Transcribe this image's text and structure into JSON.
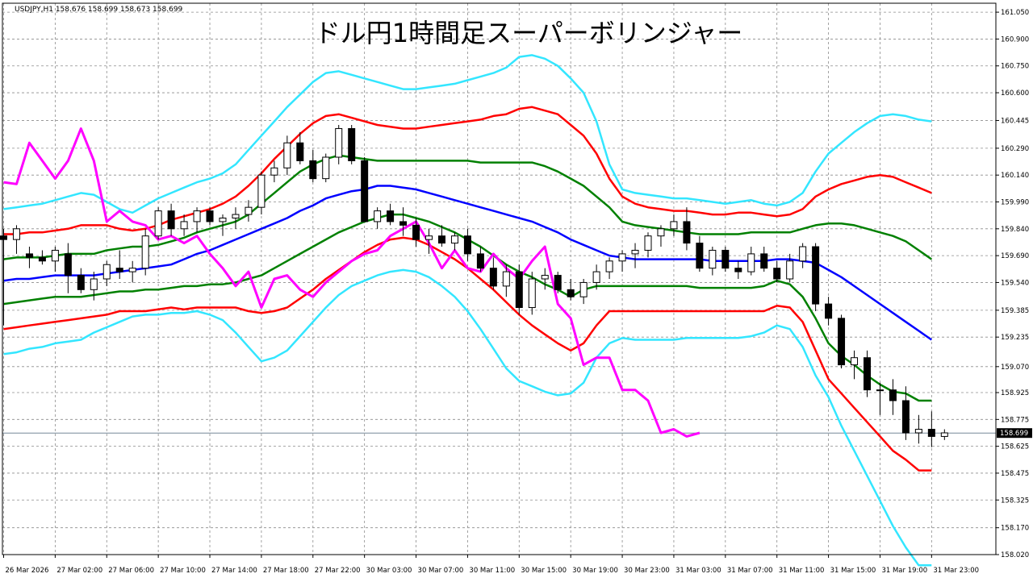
{
  "header": {
    "symbol_info": "USDJPY,H1  158.676 158.699 158.673 158.699",
    "title": "ドル円1時間足スーパーボリンジャー"
  },
  "colors": {
    "background": "#ffffff",
    "grid": "#8c8c8c",
    "bull_candle": "#ffffff",
    "bear_candle": "#000000",
    "sma": "#0000ff",
    "band_1sigma": "#008000",
    "band_2sigma": "#ff0000",
    "band_3sigma": "#33e6ff",
    "lagging_span": "#ff00ff",
    "price_line": "#778899"
  },
  "chart_data": {
    "type": "line",
    "title": "ドル円1時間足スーパーボリンジャー",
    "symbol": "USDJPY",
    "timeframe": "H1",
    "current_price": "158.699",
    "ylim": [
      158.02,
      161.1
    ],
    "y_ticks": [
      "161.050",
      "160.900",
      "160.750",
      "160.600",
      "160.445",
      "160.290",
      "160.140",
      "159.990",
      "159.840",
      "159.690",
      "159.540",
      "159.385",
      "159.235",
      "159.070",
      "158.925",
      "158.775",
      "158.625",
      "158.475",
      "158.325",
      "158.170",
      "158.020"
    ],
    "x_ticks": [
      {
        "index": 0,
        "label": "26 Mar 2026"
      },
      {
        "index": 4,
        "label": "27 Mar 02:00"
      },
      {
        "index": 8,
        "label": "27 Mar 06:00"
      },
      {
        "index": 12,
        "label": "27 Mar 10:00"
      },
      {
        "index": 16,
        "label": "27 Mar 14:00"
      },
      {
        "index": 20,
        "label": "27 Mar 18:00"
      },
      {
        "index": 24,
        "label": "27 Mar 22:00"
      },
      {
        "index": 28,
        "label": "30 Mar 03:00"
      },
      {
        "index": 32,
        "label": "30 Mar 07:00"
      },
      {
        "index": 36,
        "label": "30 Mar 11:00"
      },
      {
        "index": 40,
        "label": "30 Mar 15:00"
      },
      {
        "index": 44,
        "label": "30 Mar 19:00"
      },
      {
        "index": 48,
        "label": "30 Mar 23:00"
      },
      {
        "index": 52,
        "label": "31 Mar 03:00"
      },
      {
        "index": 56,
        "label": "31 Mar 07:00"
      },
      {
        "index": 60,
        "label": "31 Mar 11:00"
      },
      {
        "index": 64,
        "label": "31 Mar 15:00"
      },
      {
        "index": 68,
        "label": "31 Mar 19:00"
      },
      {
        "index": 72,
        "label": "31 Mar 23:00"
      }
    ],
    "candles": [
      [
        159.8,
        159.84,
        159.3,
        159.78
      ],
      [
        159.78,
        159.86,
        159.7,
        159.84
      ],
      [
        159.7,
        159.74,
        159.62,
        159.68
      ],
      [
        159.68,
        159.72,
        159.64,
        159.66
      ],
      [
        159.66,
        159.74,
        159.6,
        159.72
      ],
      [
        159.7,
        159.76,
        159.48,
        159.58
      ],
      [
        159.58,
        159.62,
        159.48,
        159.5
      ],
      [
        159.5,
        159.6,
        159.44,
        159.56
      ],
      [
        159.56,
        159.66,
        159.52,
        159.64
      ],
      [
        159.62,
        159.72,
        159.56,
        159.6
      ],
      [
        159.6,
        159.66,
        159.54,
        159.62
      ],
      [
        159.62,
        159.84,
        159.58,
        159.8
      ],
      [
        159.8,
        159.96,
        159.78,
        159.94
      ],
      [
        159.94,
        159.98,
        159.8,
        159.84
      ],
      [
        159.84,
        159.92,
        159.8,
        159.88
      ],
      [
        159.88,
        159.96,
        159.82,
        159.94
      ],
      [
        159.94,
        159.96,
        159.86,
        159.88
      ],
      [
        159.88,
        159.92,
        159.8,
        159.9
      ],
      [
        159.9,
        159.96,
        159.84,
        159.92
      ],
      [
        159.92,
        160.0,
        159.88,
        159.96
      ],
      [
        159.96,
        160.16,
        159.92,
        160.14
      ],
      [
        160.14,
        160.22,
        160.1,
        160.18
      ],
      [
        160.18,
        160.36,
        160.14,
        160.32
      ],
      [
        160.32,
        160.38,
        160.2,
        160.22
      ],
      [
        160.22,
        160.28,
        160.1,
        160.12
      ],
      [
        160.12,
        160.26,
        160.1,
        160.24
      ],
      [
        160.24,
        160.42,
        160.2,
        160.4
      ],
      [
        160.4,
        160.42,
        160.2,
        160.22
      ],
      [
        160.22,
        160.24,
        159.88,
        159.88
      ],
      [
        159.88,
        159.96,
        159.84,
        159.94
      ],
      [
        159.94,
        159.98,
        159.86,
        159.88
      ],
      [
        159.88,
        159.96,
        159.8,
        159.86
      ],
      [
        159.86,
        159.9,
        159.74,
        159.78
      ],
      [
        159.78,
        159.84,
        159.7,
        159.8
      ],
      [
        159.8,
        159.86,
        159.74,
        159.76
      ],
      [
        159.76,
        159.82,
        159.72,
        159.8
      ],
      [
        159.8,
        159.84,
        159.66,
        159.7
      ],
      [
        159.7,
        159.74,
        159.6,
        159.62
      ],
      [
        159.62,
        159.68,
        159.5,
        159.52
      ],
      [
        159.52,
        159.64,
        159.46,
        159.6
      ],
      [
        159.6,
        159.64,
        159.36,
        159.4
      ],
      [
        159.4,
        159.6,
        159.36,
        159.56
      ],
      [
        159.56,
        159.62,
        159.5,
        159.58
      ],
      [
        159.58,
        159.6,
        159.48,
        159.5
      ],
      [
        159.5,
        159.56,
        159.44,
        159.46
      ],
      [
        159.46,
        159.56,
        159.42,
        159.54
      ],
      [
        159.54,
        159.64,
        159.5,
        159.6
      ],
      [
        159.6,
        159.68,
        159.56,
        159.66
      ],
      [
        159.66,
        159.72,
        159.6,
        159.7
      ],
      [
        159.7,
        159.76,
        159.62,
        159.72
      ],
      [
        159.72,
        159.82,
        159.68,
        159.8
      ],
      [
        159.8,
        159.86,
        159.74,
        159.84
      ],
      [
        159.84,
        159.92,
        159.8,
        159.88
      ],
      [
        159.88,
        159.96,
        159.72,
        159.76
      ],
      [
        159.76,
        159.8,
        159.6,
        159.62
      ],
      [
        159.62,
        159.74,
        159.58,
        159.72
      ],
      [
        159.72,
        159.74,
        159.6,
        159.62
      ],
      [
        159.62,
        159.66,
        159.56,
        159.6
      ],
      [
        159.6,
        159.74,
        159.58,
        159.7
      ],
      [
        159.7,
        159.74,
        159.6,
        159.62
      ],
      [
        159.62,
        159.66,
        159.54,
        159.56
      ],
      [
        159.56,
        159.7,
        159.54,
        159.66
      ],
      [
        159.66,
        159.76,
        159.62,
        159.74
      ],
      [
        159.74,
        159.76,
        159.38,
        159.42
      ],
      [
        159.42,
        159.46,
        159.3,
        159.34
      ],
      [
        159.34,
        159.36,
        159.06,
        159.08
      ],
      [
        159.08,
        159.16,
        159.0,
        159.12
      ],
      [
        159.12,
        159.16,
        158.9,
        158.94
      ],
      [
        158.94,
        158.98,
        158.8,
        158.94
      ],
      [
        158.94,
        159.0,
        158.8,
        158.88
      ],
      [
        158.88,
        158.96,
        158.66,
        158.7
      ],
      [
        158.7,
        158.8,
        158.64,
        158.72
      ],
      [
        158.72,
        158.82,
        158.62,
        158.68
      ],
      [
        158.68,
        158.72,
        158.66,
        158.7
      ]
    ],
    "series": [
      {
        "key": "sigma_plus3",
        "values": [
          159.95,
          159.96,
          159.97,
          159.98,
          160.0,
          160.02,
          160.04,
          160.03,
          159.99,
          159.95,
          159.93,
          159.97,
          160.01,
          160.04,
          160.07,
          160.1,
          160.12,
          160.15,
          160.2,
          160.28,
          160.36,
          160.44,
          160.52,
          160.59,
          160.66,
          160.71,
          160.72,
          160.7,
          160.68,
          160.66,
          160.64,
          160.62,
          160.62,
          160.63,
          160.64,
          160.65,
          160.67,
          160.69,
          160.71,
          160.74,
          160.8,
          160.81,
          160.79,
          160.75,
          160.68,
          160.6,
          160.44,
          160.2,
          160.06,
          160.04,
          160.03,
          160.02,
          160.01,
          160.01,
          160.0,
          159.99,
          159.98,
          159.99,
          160.0,
          159.98,
          159.97,
          159.99,
          160.04,
          160.16,
          160.26,
          160.32,
          160.38,
          160.43,
          160.47,
          160.48,
          160.47,
          160.45,
          160.44
        ]
      },
      {
        "key": "sigma_plus2",
        "values": [
          159.81,
          159.81,
          159.82,
          159.82,
          159.83,
          159.84,
          159.86,
          159.86,
          159.86,
          159.84,
          159.83,
          159.84,
          159.86,
          159.89,
          159.91,
          159.93,
          159.95,
          159.98,
          160.02,
          160.08,
          160.15,
          160.23,
          160.3,
          160.37,
          160.43,
          160.47,
          160.48,
          160.46,
          160.44,
          160.42,
          160.41,
          160.4,
          160.4,
          160.41,
          160.42,
          160.43,
          160.44,
          160.45,
          160.47,
          160.48,
          160.51,
          160.52,
          160.5,
          160.48,
          160.42,
          160.36,
          160.26,
          160.12,
          160.02,
          159.98,
          159.96,
          159.95,
          159.94,
          159.94,
          159.93,
          159.92,
          159.92,
          159.93,
          159.93,
          159.92,
          159.91,
          159.92,
          159.95,
          160.02,
          160.06,
          160.09,
          160.11,
          160.13,
          160.14,
          160.13,
          160.1,
          160.07,
          160.04
        ]
      },
      {
        "key": "sigma_plus1",
        "values": [
          159.67,
          159.68,
          159.68,
          159.68,
          159.69,
          159.7,
          159.7,
          159.7,
          159.72,
          159.73,
          159.74,
          159.74,
          159.75,
          159.77,
          159.79,
          159.82,
          159.84,
          159.86,
          159.88,
          159.92,
          159.98,
          160.04,
          160.1,
          160.16,
          160.2,
          160.23,
          160.25,
          160.24,
          160.23,
          160.22,
          160.22,
          160.22,
          160.22,
          160.22,
          160.22,
          160.22,
          160.22,
          160.21,
          160.21,
          160.21,
          160.21,
          160.21,
          160.19,
          160.16,
          160.12,
          160.08,
          160.02,
          159.96,
          159.88,
          159.86,
          159.85,
          159.84,
          159.83,
          159.82,
          159.81,
          159.81,
          159.81,
          159.81,
          159.82,
          159.82,
          159.82,
          159.82,
          159.84,
          159.86,
          159.87,
          159.87,
          159.86,
          159.84,
          159.82,
          159.8,
          159.77,
          159.72,
          159.67
        ]
      },
      {
        "key": "sma",
        "values": [
          159.55,
          159.56,
          159.56,
          159.57,
          159.58,
          159.58,
          159.58,
          159.58,
          159.59,
          159.6,
          159.61,
          159.62,
          159.63,
          159.64,
          159.67,
          159.7,
          159.72,
          159.75,
          159.78,
          159.81,
          159.84,
          159.87,
          159.9,
          159.94,
          159.97,
          160.01,
          160.03,
          160.05,
          160.06,
          160.08,
          160.08,
          160.07,
          160.06,
          160.04,
          160.02,
          160.0,
          159.98,
          159.96,
          159.94,
          159.92,
          159.9,
          159.88,
          159.85,
          159.82,
          159.78,
          159.75,
          159.72,
          159.69,
          159.68,
          159.67,
          159.67,
          159.67,
          159.67,
          159.67,
          159.67,
          159.66,
          159.66,
          159.66,
          159.66,
          159.66,
          159.67,
          159.67,
          159.66,
          159.65,
          159.61,
          159.57,
          159.52,
          159.47,
          159.42,
          159.37,
          159.32,
          159.27,
          159.22
        ]
      },
      {
        "key": "sigma_minus1",
        "values": [
          159.42,
          159.43,
          159.44,
          159.45,
          159.46,
          159.46,
          159.46,
          159.47,
          159.48,
          159.49,
          159.49,
          159.5,
          159.5,
          159.51,
          159.52,
          159.52,
          159.53,
          159.53,
          159.54,
          159.56,
          159.58,
          159.62,
          159.66,
          159.7,
          159.74,
          159.78,
          159.82,
          159.85,
          159.88,
          159.9,
          159.92,
          159.92,
          159.9,
          159.88,
          159.85,
          159.82,
          159.78,
          159.74,
          159.69,
          159.64,
          159.6,
          159.57,
          159.53,
          159.5,
          159.46,
          159.5,
          159.52,
          159.52,
          159.52,
          159.52,
          159.52,
          159.52,
          159.52,
          159.52,
          159.51,
          159.51,
          159.51,
          159.51,
          159.51,
          159.52,
          159.55,
          159.53,
          159.46,
          159.34,
          159.2,
          159.13,
          159.08,
          159.02,
          158.97,
          158.93,
          158.92,
          158.88,
          158.88
        ]
      },
      {
        "key": "sigma_minus2",
        "values": [
          159.28,
          159.29,
          159.3,
          159.31,
          159.32,
          159.33,
          159.34,
          159.35,
          159.36,
          159.38,
          159.38,
          159.38,
          159.39,
          159.4,
          159.39,
          159.4,
          159.4,
          159.4,
          159.4,
          159.38,
          159.37,
          159.38,
          159.4,
          159.45,
          159.5,
          159.56,
          159.61,
          159.66,
          159.71,
          159.75,
          159.78,
          159.79,
          159.78,
          159.75,
          159.71,
          159.67,
          159.62,
          159.56,
          159.5,
          159.43,
          159.36,
          159.3,
          159.25,
          159.2,
          159.16,
          159.2,
          159.3,
          159.38,
          159.38,
          159.38,
          159.38,
          159.38,
          159.38,
          159.38,
          159.38,
          159.38,
          159.38,
          159.38,
          159.38,
          159.38,
          159.41,
          159.4,
          159.32,
          159.16,
          159.0,
          158.92,
          158.84,
          158.76,
          158.68,
          158.6,
          158.55,
          158.49,
          158.49
        ]
      },
      {
        "key": "sigma_minus3",
        "values": [
          159.14,
          159.15,
          159.17,
          159.18,
          159.2,
          159.21,
          159.22,
          159.26,
          159.29,
          159.32,
          159.35,
          159.36,
          159.36,
          159.37,
          159.37,
          159.38,
          159.36,
          159.33,
          159.26,
          159.18,
          159.1,
          159.12,
          159.16,
          159.24,
          159.32,
          159.4,
          159.47,
          159.52,
          159.55,
          159.58,
          159.6,
          159.61,
          159.6,
          159.57,
          159.52,
          159.46,
          159.38,
          159.28,
          159.17,
          159.06,
          158.99,
          158.96,
          158.93,
          158.91,
          158.92,
          158.98,
          159.12,
          159.2,
          159.23,
          159.22,
          159.22,
          159.22,
          159.22,
          159.23,
          159.23,
          159.23,
          159.23,
          159.23,
          159.24,
          159.26,
          159.3,
          159.28,
          159.18,
          159.02,
          158.9,
          158.74,
          158.6,
          158.46,
          158.32,
          158.18,
          158.06,
          157.96,
          157.96
        ]
      },
      {
        "key": "lagging_span",
        "values": [
          160.1,
          160.09,
          160.32,
          160.22,
          160.12,
          160.22,
          160.4,
          160.22,
          159.88,
          159.94,
          159.88,
          159.86,
          159.78,
          159.8,
          159.76,
          159.8,
          159.7,
          159.62,
          159.52,
          159.6,
          159.4,
          159.56,
          159.58,
          159.5,
          159.46,
          159.54,
          159.6,
          159.66,
          159.7,
          159.72,
          159.8,
          159.84,
          159.88,
          159.76,
          159.62,
          159.72,
          159.62,
          159.6,
          159.7,
          159.62,
          159.56,
          159.66,
          159.74,
          159.42,
          159.34,
          159.08,
          159.12,
          159.12,
          158.94,
          158.94,
          158.88,
          158.7,
          158.72,
          158.68,
          158.7
        ]
      }
    ]
  }
}
